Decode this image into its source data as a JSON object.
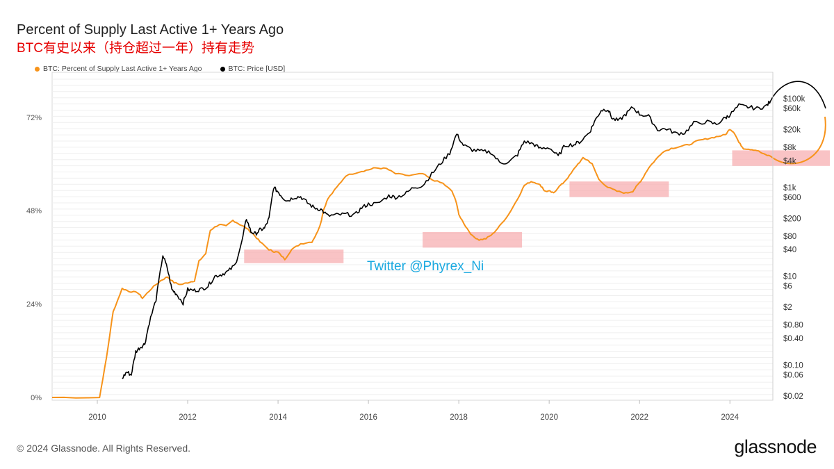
{
  "header": {
    "title": "Percent of Supply Last Active 1+ Years Ago",
    "subtitle": "BTC有史以来（持仓超过一年）持有走势"
  },
  "legend": [
    {
      "label": "BTC: Percent of Supply Last Active 1+ Years Ago",
      "color": "#f7931a"
    },
    {
      "label": "BTC: Price [USD]",
      "color": "#000000"
    }
  ],
  "footer": {
    "copyright": "© 2024 Glassnode. All Rights Reserved.",
    "brand": "glassnode"
  },
  "watermark": "Twitter @Phyrex_Ni",
  "chart_data": {
    "type": "line",
    "x_axis": {
      "ticks": [
        "2010",
        "2012",
        "2014",
        "2016",
        "2018",
        "2020",
        "2022",
        "2024"
      ],
      "range": [
        2009.0,
        2024.95
      ]
    },
    "y_left": {
      "ticks": [
        "0%",
        "24%",
        "48%",
        "72%"
      ],
      "range": [
        0,
        80
      ],
      "unit": "%"
    },
    "y_right": {
      "scale": "log",
      "ticks": [
        "$0.02",
        "$0.06",
        "$0.10",
        "$0.40",
        "$0.80",
        "$2",
        "$6",
        "$10",
        "$40",
        "$80",
        "$200",
        "$600",
        "$1k",
        "$4k",
        "$8k",
        "$20k",
        "$60k",
        "$100k"
      ]
    },
    "grid": true,
    "series": [
      {
        "name": "BTC: Percent of Supply Last Active 1+ Years Ago",
        "axis": "left",
        "color": "#f7931a",
        "points": [
          [
            2009.0,
            0
          ],
          [
            2010.05,
            0
          ],
          [
            2010.2,
            10
          ],
          [
            2010.35,
            22
          ],
          [
            2010.55,
            28
          ],
          [
            2010.7,
            27.3
          ],
          [
            2010.9,
            26.9
          ],
          [
            2011.0,
            25.5
          ],
          [
            2011.2,
            28
          ],
          [
            2011.4,
            30
          ],
          [
            2011.55,
            31
          ],
          [
            2011.7,
            29.5
          ],
          [
            2011.85,
            29
          ],
          [
            2012.0,
            29.5
          ],
          [
            2012.15,
            30
          ],
          [
            2012.25,
            35
          ],
          [
            2012.4,
            37
          ],
          [
            2012.5,
            43
          ],
          [
            2012.7,
            44.5
          ],
          [
            2012.85,
            44
          ],
          [
            2013.0,
            45.5
          ],
          [
            2013.15,
            44.5
          ],
          [
            2013.3,
            43.5
          ],
          [
            2013.45,
            42
          ],
          [
            2013.6,
            40
          ],
          [
            2013.8,
            38
          ],
          [
            2013.9,
            37.5
          ],
          [
            2014.0,
            37.3
          ],
          [
            2014.15,
            35.5
          ],
          [
            2014.3,
            38
          ],
          [
            2014.5,
            39.5
          ],
          [
            2014.75,
            40
          ],
          [
            2014.85,
            42
          ],
          [
            2014.95,
            45
          ],
          [
            2015.0,
            48
          ],
          [
            2015.1,
            51
          ],
          [
            2015.3,
            54
          ],
          [
            2015.5,
            57
          ],
          [
            2015.8,
            58
          ],
          [
            2016.0,
            58.5
          ],
          [
            2016.15,
            59
          ],
          [
            2016.4,
            58.8
          ],
          [
            2016.6,
            57.5
          ],
          [
            2016.9,
            57
          ],
          [
            2017.2,
            57.5
          ],
          [
            2017.4,
            56
          ],
          [
            2017.65,
            55
          ],
          [
            2017.85,
            53
          ],
          [
            2017.95,
            50
          ],
          [
            2018.0,
            47
          ],
          [
            2018.15,
            44
          ],
          [
            2018.3,
            41.5
          ],
          [
            2018.45,
            40.5
          ],
          [
            2018.6,
            40.8
          ],
          [
            2018.75,
            42
          ],
          [
            2018.9,
            44
          ],
          [
            2019.1,
            47
          ],
          [
            2019.3,
            51
          ],
          [
            2019.45,
            54.5
          ],
          [
            2019.6,
            55.5
          ],
          [
            2019.75,
            55
          ],
          [
            2019.85,
            54
          ],
          [
            2019.9,
            53
          ],
          [
            2020.0,
            53
          ],
          [
            2020.1,
            52.5
          ],
          [
            2020.2,
            54
          ],
          [
            2020.3,
            55
          ],
          [
            2020.45,
            57
          ],
          [
            2020.6,
            59.5
          ],
          [
            2020.75,
            61.5
          ],
          [
            2020.85,
            61
          ],
          [
            2020.95,
            60
          ],
          [
            2021.1,
            56
          ],
          [
            2021.3,
            54
          ],
          [
            2021.5,
            53
          ],
          [
            2021.7,
            52.5
          ],
          [
            2021.85,
            53
          ],
          [
            2021.95,
            54.5
          ],
          [
            2022.05,
            56
          ],
          [
            2022.2,
            59
          ],
          [
            2022.35,
            61
          ],
          [
            2022.5,
            63
          ],
          [
            2022.7,
            64
          ],
          [
            2022.9,
            64.5
          ],
          [
            2023.1,
            65
          ],
          [
            2023.3,
            66
          ],
          [
            2023.5,
            66.5
          ],
          [
            2023.7,
            67
          ],
          [
            2023.9,
            67.5
          ],
          [
            2024.0,
            69
          ],
          [
            2024.1,
            68
          ],
          [
            2024.2,
            65.5
          ],
          [
            2024.3,
            64
          ],
          [
            2024.45,
            63.8
          ],
          [
            2024.6,
            63.5
          ],
          [
            2024.75,
            62.5
          ],
          [
            2024.9,
            62
          ]
        ]
      },
      {
        "name": "BTC: Price [USD]",
        "axis": "right",
        "color": "#000000",
        "points": [
          [
            2010.55,
            0.05
          ],
          [
            2010.65,
            0.07
          ],
          [
            2010.75,
            0.06
          ],
          [
            2010.85,
            0.2
          ],
          [
            2010.95,
            0.25
          ],
          [
            2011.05,
            0.3
          ],
          [
            2011.15,
            0.9
          ],
          [
            2011.3,
            3
          ],
          [
            2011.45,
            30
          ],
          [
            2011.55,
            15
          ],
          [
            2011.65,
            5
          ],
          [
            2011.75,
            4
          ],
          [
            2011.9,
            2.5
          ],
          [
            2012.0,
            5
          ],
          [
            2012.15,
            4.8
          ],
          [
            2012.3,
            5.1
          ],
          [
            2012.45,
            6
          ],
          [
            2012.6,
            10
          ],
          [
            2012.75,
            11
          ],
          [
            2012.9,
            13
          ],
          [
            2013.05,
            18
          ],
          [
            2013.2,
            60
          ],
          [
            2013.3,
            200
          ],
          [
            2013.4,
            100
          ],
          [
            2013.5,
            90
          ],
          [
            2013.6,
            110
          ],
          [
            2013.7,
            120
          ],
          [
            2013.8,
            200
          ],
          [
            2013.9,
            1000
          ],
          [
            2014.0,
            800
          ],
          [
            2014.1,
            600
          ],
          [
            2014.2,
            500
          ],
          [
            2014.35,
            600
          ],
          [
            2014.5,
            620
          ],
          [
            2014.65,
            450
          ],
          [
            2014.8,
            350
          ],
          [
            2014.95,
            320
          ],
          [
            2015.1,
            230
          ],
          [
            2015.3,
            240
          ],
          [
            2015.5,
            250
          ],
          [
            2015.7,
            240
          ],
          [
            2015.85,
            350
          ],
          [
            2016.0,
            420
          ],
          [
            2016.2,
            430
          ],
          [
            2016.45,
            650
          ],
          [
            2016.6,
            600
          ],
          [
            2016.8,
            700
          ],
          [
            2017.0,
            1000
          ],
          [
            2017.2,
            1100
          ],
          [
            2017.4,
            2000
          ],
          [
            2017.6,
            3500
          ],
          [
            2017.8,
            6000
          ],
          [
            2017.95,
            16000
          ],
          [
            2018.1,
            9000
          ],
          [
            2018.3,
            7000
          ],
          [
            2018.5,
            6500
          ],
          [
            2018.7,
            6300
          ],
          [
            2018.9,
            3700
          ],
          [
            2019.1,
            3600
          ],
          [
            2019.3,
            5500
          ],
          [
            2019.45,
            11000
          ],
          [
            2019.65,
            9500
          ],
          [
            2019.8,
            7500
          ],
          [
            2020.0,
            8000
          ],
          [
            2020.2,
            5000
          ],
          [
            2020.35,
            9000
          ],
          [
            2020.55,
            9200
          ],
          [
            2020.7,
            11000
          ],
          [
            2020.9,
            18000
          ],
          [
            2021.0,
            30000
          ],
          [
            2021.15,
            55000
          ],
          [
            2021.3,
            58000
          ],
          [
            2021.4,
            35000
          ],
          [
            2021.55,
            32000
          ],
          [
            2021.7,
            45000
          ],
          [
            2021.85,
            64000
          ],
          [
            2022.0,
            45000
          ],
          [
            2022.2,
            40000
          ],
          [
            2022.4,
            20000
          ],
          [
            2022.6,
            21000
          ],
          [
            2022.8,
            16500
          ],
          [
            2023.0,
            17000
          ],
          [
            2023.2,
            28000
          ],
          [
            2023.5,
            30000
          ],
          [
            2023.7,
            26500
          ],
          [
            2023.9,
            37000
          ],
          [
            2024.0,
            43000
          ],
          [
            2024.2,
            70000
          ],
          [
            2024.4,
            65000
          ],
          [
            2024.6,
            60000
          ],
          [
            2024.8,
            68000
          ],
          [
            2024.9,
            88000
          ]
        ]
      }
    ],
    "annotations": [
      {
        "type": "highlight",
        "x": [
          2013.25,
          2015.45
        ],
        "y_pct": [
          34.5,
          38
        ]
      },
      {
        "type": "highlight",
        "x": [
          2017.2,
          2019.4
        ],
        "y_pct": [
          38.5,
          42.5
        ]
      },
      {
        "type": "highlight",
        "x": [
          2020.45,
          2022.65
        ],
        "y_pct": [
          51.5,
          55.5
        ]
      },
      {
        "type": "highlight",
        "x": [
          2024.05,
          2026.3
        ],
        "y_pct": [
          59.5,
          63.5
        ]
      }
    ]
  }
}
